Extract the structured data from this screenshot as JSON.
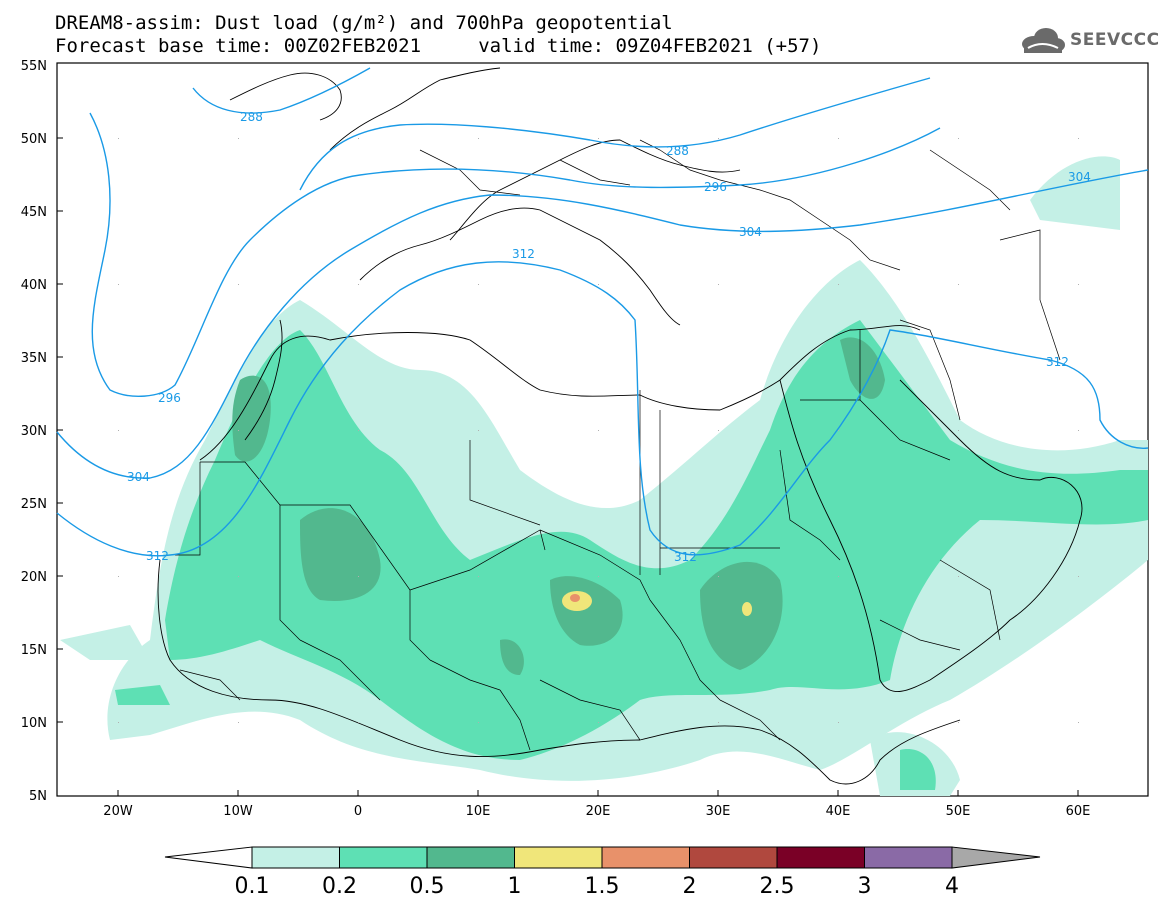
{
  "header": {
    "title_line1": "DREAM8-assim: Dust load (g/m²) and 700hPa geopotential",
    "title_line2": "Forecast base time: 00Z02FEB2021     valid time: 09Z04FEB2021 (+57)"
  },
  "logo": {
    "text": "SEEVCCC",
    "icon": "cloud-icon"
  },
  "map": {
    "lat_labels": [
      "55N",
      "50N",
      "45N",
      "40N",
      "35N",
      "30N",
      "25N",
      "20N",
      "15N",
      "10N",
      "5N"
    ],
    "lon_labels": [
      "20W",
      "10W",
      "0",
      "10E",
      "20E",
      "30E",
      "40E",
      "50E",
      "60E"
    ],
    "contour_labels": [
      "288",
      "288",
      "296",
      "296",
      "304",
      "304",
      "304",
      "312",
      "312",
      "312",
      "312"
    ],
    "contour_color": "#1a9ae6"
  },
  "colorbar": {
    "ticks": [
      "0.1",
      "0.2",
      "0.5",
      "1",
      "1.5",
      "2",
      "2.5",
      "3",
      "4"
    ],
    "colors": [
      "#c4f0e6",
      "#5ee0b4",
      "#52b88e",
      "#f0e67a",
      "#e8916a",
      "#b0483e",
      "#7a0026",
      "#8a6aa6",
      "#a8a8a8"
    ],
    "end_colors": {
      "low": "#ffffff",
      "high": "#a8a8a8"
    }
  }
}
